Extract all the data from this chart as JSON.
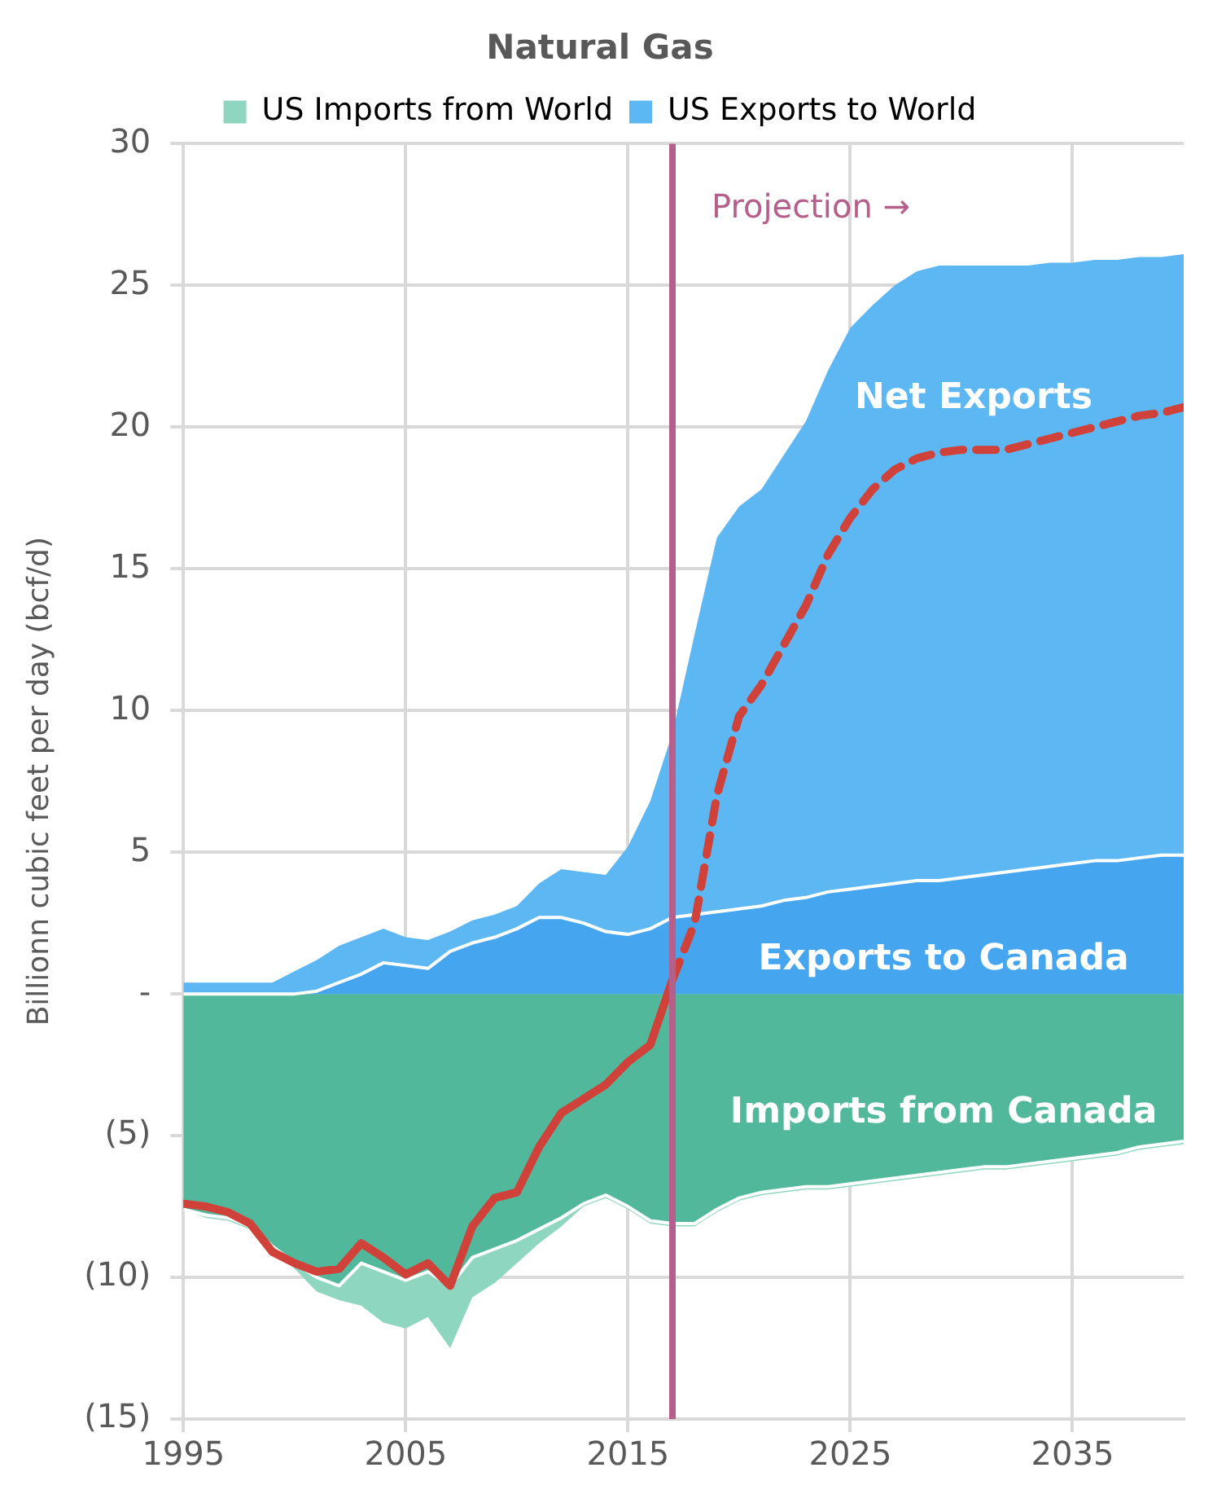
{
  "chart_data": {
    "type": "area",
    "title": "Natural Gas",
    "ylabel": "Billionn cubic feet per day (bcf/d)",
    "x": [
      1995,
      1996,
      1997,
      1998,
      1999,
      2000,
      2001,
      2002,
      2003,
      2004,
      2005,
      2006,
      2007,
      2008,
      2009,
      2010,
      2011,
      2012,
      2013,
      2014,
      2015,
      2016,
      2017,
      2018,
      2019,
      2020,
      2021,
      2022,
      2023,
      2024,
      2025,
      2026,
      2027,
      2028,
      2029,
      2030,
      2031,
      2032,
      2033,
      2034,
      2035,
      2036,
      2037,
      2038,
      2039,
      2040
    ],
    "series": [
      {
        "name": "US Imports from World",
        "color": "#8fd6c0",
        "values": [
          -7.6,
          -7.9,
          -8.0,
          -8.3,
          -9.0,
          -9.7,
          -10.5,
          -10.8,
          -11.0,
          -11.6,
          -11.8,
          -11.4,
          -12.5,
          -10.7,
          -10.2,
          -9.5,
          -8.8,
          -8.2,
          -7.5,
          -7.2,
          -7.6,
          -8.1,
          -8.2,
          -8.2,
          -7.7,
          -7.3,
          -7.1,
          -7.0,
          -6.9,
          -6.9,
          -6.8,
          -6.7,
          -6.6,
          -6.5,
          -6.4,
          -6.3,
          -6.2,
          -6.2,
          -6.1,
          -6.0,
          -5.9,
          -5.8,
          -5.7,
          -5.5,
          -5.4,
          -5.3
        ]
      },
      {
        "name": "US Exports to World",
        "color": "#5db7f2",
        "values": [
          0.4,
          0.4,
          0.4,
          0.4,
          0.4,
          0.8,
          1.2,
          1.7,
          2.0,
          2.3,
          2.0,
          1.9,
          2.2,
          2.6,
          2.8,
          3.1,
          3.9,
          4.4,
          4.3,
          4.2,
          5.2,
          6.8,
          9.2,
          12.7,
          16.1,
          17.2,
          17.8,
          19.0,
          20.2,
          22.0,
          23.5,
          24.3,
          25.0,
          25.5,
          25.7,
          25.7,
          25.7,
          25.7,
          25.7,
          25.8,
          25.8,
          25.9,
          25.9,
          26.0,
          26.0,
          26.1
        ]
      },
      {
        "color": "#45a6ef",
        "values": [
          0,
          0,
          0,
          0,
          0,
          0,
          0.1,
          0.4,
          0.7,
          1.1,
          1.0,
          0.9,
          1.5,
          1.8,
          2.0,
          2.3,
          2.7,
          2.7,
          2.5,
          2.2,
          2.1,
          2.3,
          2.7,
          2.8,
          2.9,
          3.0,
          3.1,
          3.3,
          3.4,
          3.6,
          3.7,
          3.8,
          3.9,
          4.0,
          4.0,
          4.1,
          4.2,
          4.3,
          4.4,
          4.5,
          4.6,
          4.7,
          4.7,
          4.8,
          4.9,
          4.9
        ]
      },
      {
        "color": "#52b89b",
        "values": [
          -7.6,
          -7.8,
          -7.9,
          -8.2,
          -8.9,
          -9.5,
          -10.0,
          -10.3,
          -9.5,
          -9.8,
          -10.1,
          -9.8,
          -10.3,
          -9.3,
          -9.0,
          -8.7,
          -8.3,
          -7.9,
          -7.4,
          -7.1,
          -7.5,
          -8.0,
          -8.1,
          -8.1,
          -7.6,
          -7.2,
          -7.0,
          -6.9,
          -6.8,
          -6.8,
          -6.7,
          -6.6,
          -6.5,
          -6.4,
          -6.3,
          -6.2,
          -6.1,
          -6.1,
          -6.0,
          -5.9,
          -5.8,
          -5.7,
          -5.6,
          -5.4,
          -5.3,
          -5.2
        ]
      },
      {
        "type": "line",
        "color": "#d0413a",
        "line_style": "solid",
        "x": [
          1995,
          1996,
          1997,
          1998,
          1999,
          2000,
          2001,
          2002,
          2003,
          2004,
          2005,
          2006,
          2007,
          2008,
          2009,
          2010,
          2011,
          2012,
          2013,
          2014,
          2015,
          2016,
          2017
        ],
        "values": [
          -7.4,
          -7.5,
          -7.7,
          -8.1,
          -9.1,
          -9.5,
          -9.8,
          -9.7,
          -8.8,
          -9.3,
          -9.9,
          -9.5,
          -10.3,
          -8.2,
          -7.2,
          -7.0,
          -5.4,
          -4.2,
          -3.7,
          -3.2,
          -2.4,
          -1.8,
          0.5
        ]
      },
      {
        "type": "line",
        "color": "#d0413a",
        "line_style": "dashed",
        "x": [
          2017,
          2018,
          2019,
          2020,
          2021,
          2022,
          2023,
          2024,
          2025,
          2026,
          2027,
          2028,
          2029,
          2030,
          2031,
          2032,
          2033,
          2034,
          2035,
          2036,
          2037,
          2038,
          2039,
          2040
        ],
        "values": [
          0.5,
          2.5,
          7.0,
          9.8,
          10.9,
          12.3,
          13.7,
          15.5,
          16.8,
          17.8,
          18.5,
          18.9,
          19.1,
          19.2,
          19.2,
          19.2,
          19.4,
          19.6,
          19.8,
          20.0,
          20.2,
          20.4,
          20.5,
          20.7
        ]
      }
    ],
    "xlim": [
      1995,
      2040
    ],
    "xticks": [
      1995,
      2005,
      2015,
      2025,
      2035
    ],
    "ylim": [
      -15,
      30
    ],
    "yticks": [
      {
        "value": -15,
        "label": "(15)"
      },
      {
        "value": -10,
        "label": "(10)"
      },
      {
        "value": -5,
        "label": "(5)"
      },
      {
        "value": 0,
        "label": "-"
      },
      5,
      10,
      15,
      20,
      25,
      30
    ],
    "ref_lines": [
      {
        "axis": "x",
        "value": 2017,
        "label": "Projection →",
        "color": "#b5608a"
      }
    ],
    "annotations": [
      "Net Exports",
      "Exports to Canada",
      "Imports from Canada"
    ],
    "grid": true,
    "legend": "top",
    "marker": "none"
  }
}
